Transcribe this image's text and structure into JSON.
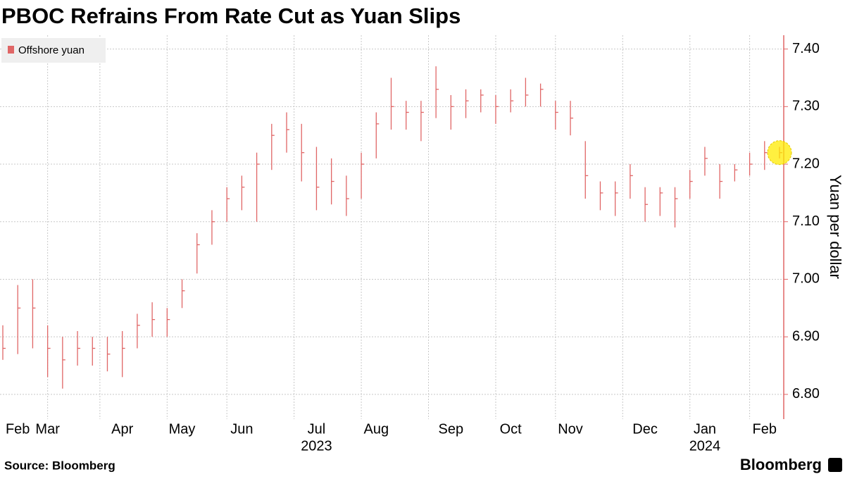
{
  "chart_data": {
    "type": "ohlc",
    "title": "PBOC Refrains From Rate Cut as Yuan Slips",
    "y_label": "Yuan per dollar",
    "source": "Source: Bloomberg",
    "brand": "Bloomberg",
    "categories": [
      null,
      "Feb",
      null,
      "Mar",
      null,
      null,
      null,
      null,
      "Apr",
      null,
      null,
      null,
      "May",
      null,
      null,
      null,
      "Jun",
      null,
      null,
      null,
      null,
      "Jul",
      null,
      null,
      null,
      "Aug",
      null,
      null,
      null,
      null,
      "Sep",
      null,
      null,
      null,
      "Oct",
      null,
      null,
      null,
      "Nov",
      null,
      null,
      null,
      null,
      "Dec",
      null,
      null,
      null,
      "Jan",
      null,
      null,
      null,
      "Feb",
      null
    ],
    "year_labels": [
      {
        "label": "2023",
        "category": "Jul"
      },
      {
        "label": "2024",
        "category": "Jan"
      }
    ],
    "series": [
      {
        "name": "Offshore yuan",
        "color": "#e06666",
        "values": [
          6.88,
          6.95,
          6.95,
          6.88,
          6.86,
          6.88,
          6.88,
          6.87,
          6.88,
          6.92,
          6.93,
          6.93,
          6.98,
          7.06,
          7.1,
          7.14,
          7.16,
          7.2,
          7.25,
          7.26,
          7.22,
          7.16,
          7.17,
          7.14,
          7.2,
          7.27,
          7.3,
          7.29,
          7.29,
          7.33,
          7.3,
          7.31,
          7.32,
          7.3,
          7.31,
          7.32,
          7.33,
          7.29,
          7.28,
          7.18,
          7.15,
          7.15,
          7.18,
          7.13,
          7.15,
          7.14,
          7.17,
          7.21,
          7.17,
          7.19,
          7.2,
          7.22,
          7.22
        ],
        "high": [
          6.92,
          6.99,
          7.0,
          6.92,
          6.9,
          6.91,
          6.9,
          6.9,
          6.91,
          6.94,
          6.96,
          6.95,
          7.0,
          7.08,
          7.12,
          7.16,
          7.18,
          7.22,
          7.27,
          7.29,
          7.27,
          7.23,
          7.21,
          7.18,
          7.22,
          7.29,
          7.35,
          7.31,
          7.31,
          7.37,
          7.32,
          7.33,
          7.33,
          7.32,
          7.33,
          7.35,
          7.34,
          7.31,
          7.31,
          7.24,
          7.17,
          7.17,
          7.2,
          7.16,
          7.16,
          7.16,
          7.19,
          7.23,
          7.2,
          7.2,
          7.22,
          7.24,
          7.23
        ],
        "low": [
          6.86,
          6.87,
          6.88,
          6.83,
          6.81,
          6.85,
          6.85,
          6.84,
          6.83,
          6.88,
          6.9,
          6.9,
          6.95,
          7.01,
          7.06,
          7.1,
          7.12,
          7.1,
          7.19,
          7.22,
          7.17,
          7.12,
          7.13,
          7.11,
          7.14,
          7.21,
          7.26,
          7.26,
          7.24,
          7.28,
          7.26,
          7.28,
          7.29,
          7.27,
          7.29,
          7.3,
          7.3,
          7.26,
          7.25,
          7.14,
          7.12,
          7.11,
          7.14,
          7.1,
          7.11,
          7.09,
          7.14,
          7.18,
          7.14,
          7.17,
          7.18,
          7.19,
          7.21
        ]
      }
    ],
    "ylim": [
      6.757,
      7.424
    ],
    "yticks": [
      {
        "value": 6.8,
        "label": "6.80"
      },
      {
        "value": 6.9,
        "label": "6.90"
      },
      {
        "value": 7.0,
        "label": "7.00"
      },
      {
        "value": 7.1,
        "label": "7.10"
      },
      {
        "value": 7.2,
        "label": "7.20"
      },
      {
        "value": 7.3,
        "label": "7.30"
      },
      {
        "value": 7.4,
        "label": "7.40"
      }
    ],
    "grid": true,
    "legend": "top-left"
  }
}
